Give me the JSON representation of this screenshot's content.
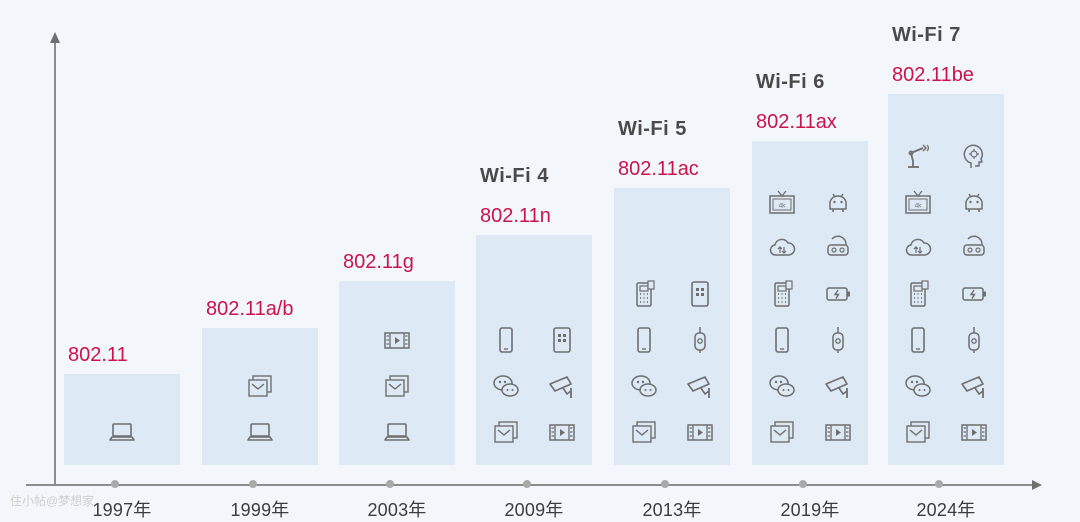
{
  "timeline": [
    {
      "year": "1997年",
      "standard": "802.11",
      "wifi": "",
      "icons": [
        [
          "laptop-icon"
        ]
      ]
    },
    {
      "year": "1999年",
      "standard": "802.11a/b",
      "wifi": "",
      "icons": [
        [
          "email-icon"
        ],
        [
          "laptop-icon"
        ]
      ]
    },
    {
      "year": "2003年",
      "standard": "802.11g",
      "wifi": "",
      "icons": [
        [
          "video-icon"
        ],
        [
          "email-icon"
        ],
        [
          "laptop-icon"
        ]
      ]
    },
    {
      "year": "2009年",
      "standard": "802.11n",
      "wifi": "Wi-Fi 4",
      "icons": [
        [
          "smartphone-icon",
          "tablet-icon"
        ],
        [
          "wechat-icon",
          "security-camera-icon"
        ],
        [
          "email-icon",
          "video-icon"
        ]
      ]
    },
    {
      "year": "2013年",
      "standard": "802.11ac",
      "wifi": "Wi-Fi 5",
      "icons": [
        [
          "pos-terminal-icon",
          "tablet-icon"
        ],
        [
          "smartphone-icon",
          "smart-plug-icon"
        ],
        [
          "wechat-icon",
          "security-camera-icon"
        ],
        [
          "email-icon",
          "video-icon"
        ]
      ]
    },
    {
      "year": "2019年",
      "standard": "802.11ax",
      "wifi": "Wi-Fi 6",
      "icons": [
        [
          "tv-4k-icon",
          "android-icon"
        ],
        [
          "cloud-icon",
          "vr-headset-icon"
        ],
        [
          "pos-terminal-icon",
          "battery-icon"
        ],
        [
          "smartphone-icon",
          "smart-plug-icon"
        ],
        [
          "wechat-icon",
          "security-camera-icon"
        ],
        [
          "email-icon",
          "video-icon"
        ]
      ]
    },
    {
      "year": "2024年",
      "standard": "802.11be",
      "wifi": "Wi-Fi 7",
      "icons": [
        [
          "robot-arm-icon",
          "ai-head-icon"
        ],
        [
          "tv-4k-icon",
          "android-icon"
        ],
        [
          "cloud-icon",
          "vr-headset-icon"
        ],
        [
          "pos-terminal-icon",
          "battery-icon"
        ],
        [
          "smartphone-icon",
          "smart-plug-icon"
        ],
        [
          "wechat-icon",
          "security-camera-icon"
        ],
        [
          "email-icon",
          "video-icon"
        ]
      ]
    }
  ],
  "watermark": "住小帖@梦想家",
  "colors": {
    "standard": "#c8144a",
    "box": "#dde9f5",
    "background": "#f3f7fb",
    "axis": "#8d8d8d",
    "icon": "#6f6f6f"
  }
}
